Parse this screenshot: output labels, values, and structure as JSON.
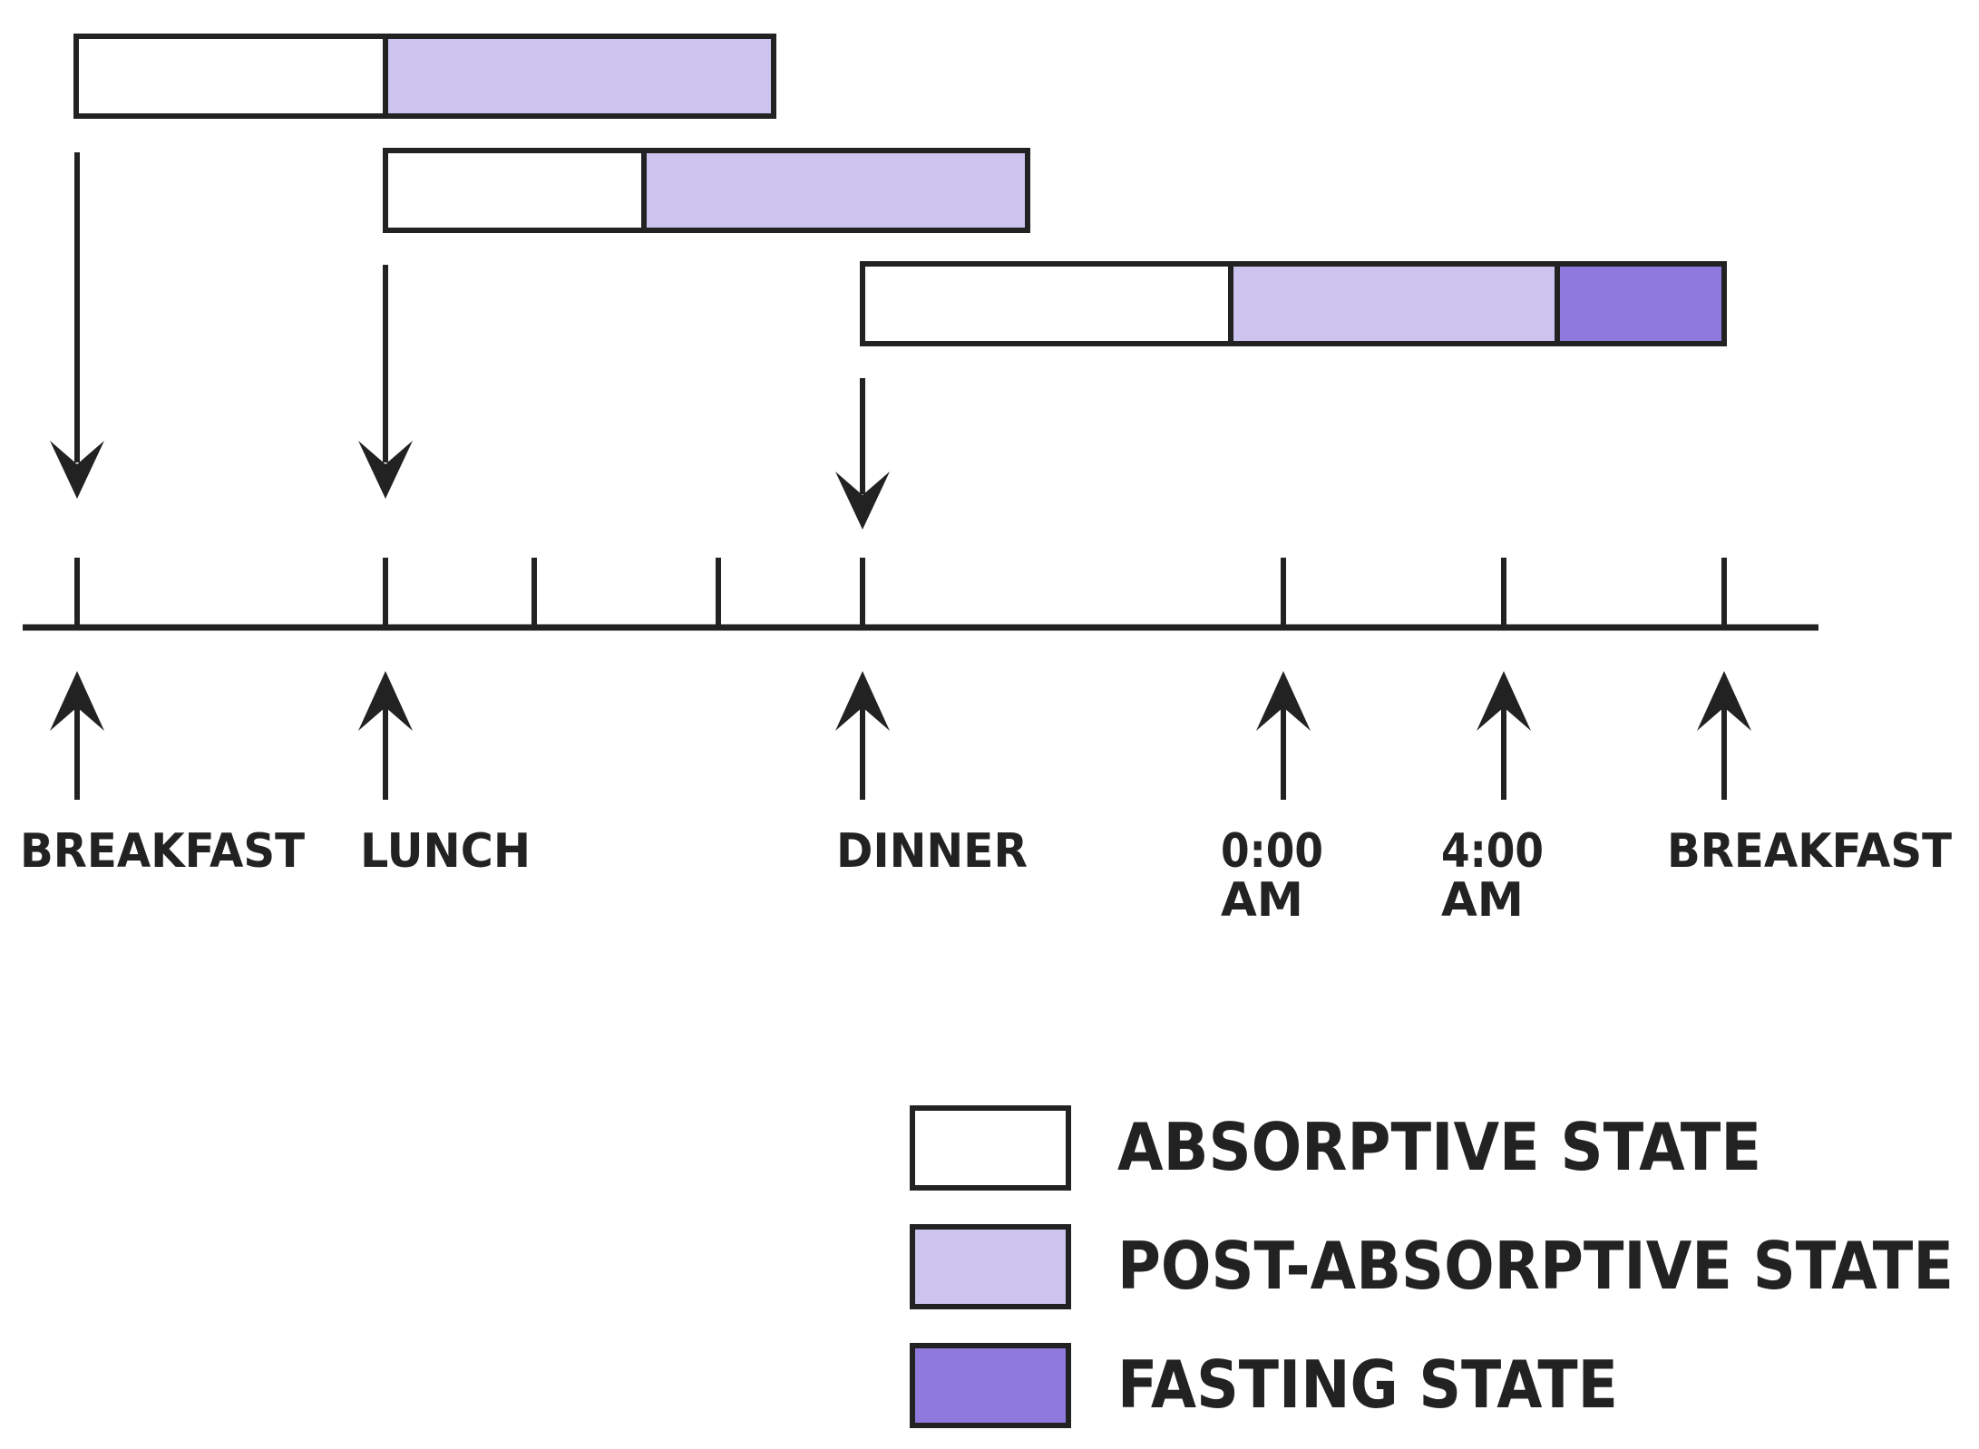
{
  "diagram": {
    "time_labels": [
      {
        "id": "breakfast",
        "lines": [
          "BREAKFAST"
        ]
      },
      {
        "id": "lunch",
        "lines": [
          "LUNCH"
        ]
      },
      {
        "id": "dinner",
        "lines": [
          "DINNER"
        ]
      },
      {
        "id": "midnight",
        "lines": [
          "0:00",
          "AM"
        ]
      },
      {
        "id": "four-am",
        "lines": [
          "4:00",
          "AM"
        ]
      },
      {
        "id": "breakfast-next",
        "lines": [
          "BREAKFAST"
        ]
      }
    ],
    "meals": [
      {
        "name": "breakfast",
        "segments": [
          "absorptive",
          "post-absorptive"
        ]
      },
      {
        "name": "lunch",
        "segments": [
          "absorptive",
          "post-absorptive"
        ]
      },
      {
        "name": "dinner",
        "segments": [
          "absorptive",
          "post-absorptive",
          "fasting"
        ]
      }
    ],
    "legend": [
      {
        "key": "absorptive",
        "label": "ABSORPTIVE STATE",
        "color": "#ffffff"
      },
      {
        "key": "post-absorptive",
        "label": "POST-ABSORPTIVE STATE",
        "color": "#cdc3ef"
      },
      {
        "key": "fasting",
        "label": "FASTING STATE",
        "color": "#9079dc"
      }
    ],
    "colors": {
      "stroke": "#222222",
      "absorptive": "#ffffff",
      "post_absorptive": "#cdc3ef",
      "fasting": "#9079dc"
    }
  }
}
